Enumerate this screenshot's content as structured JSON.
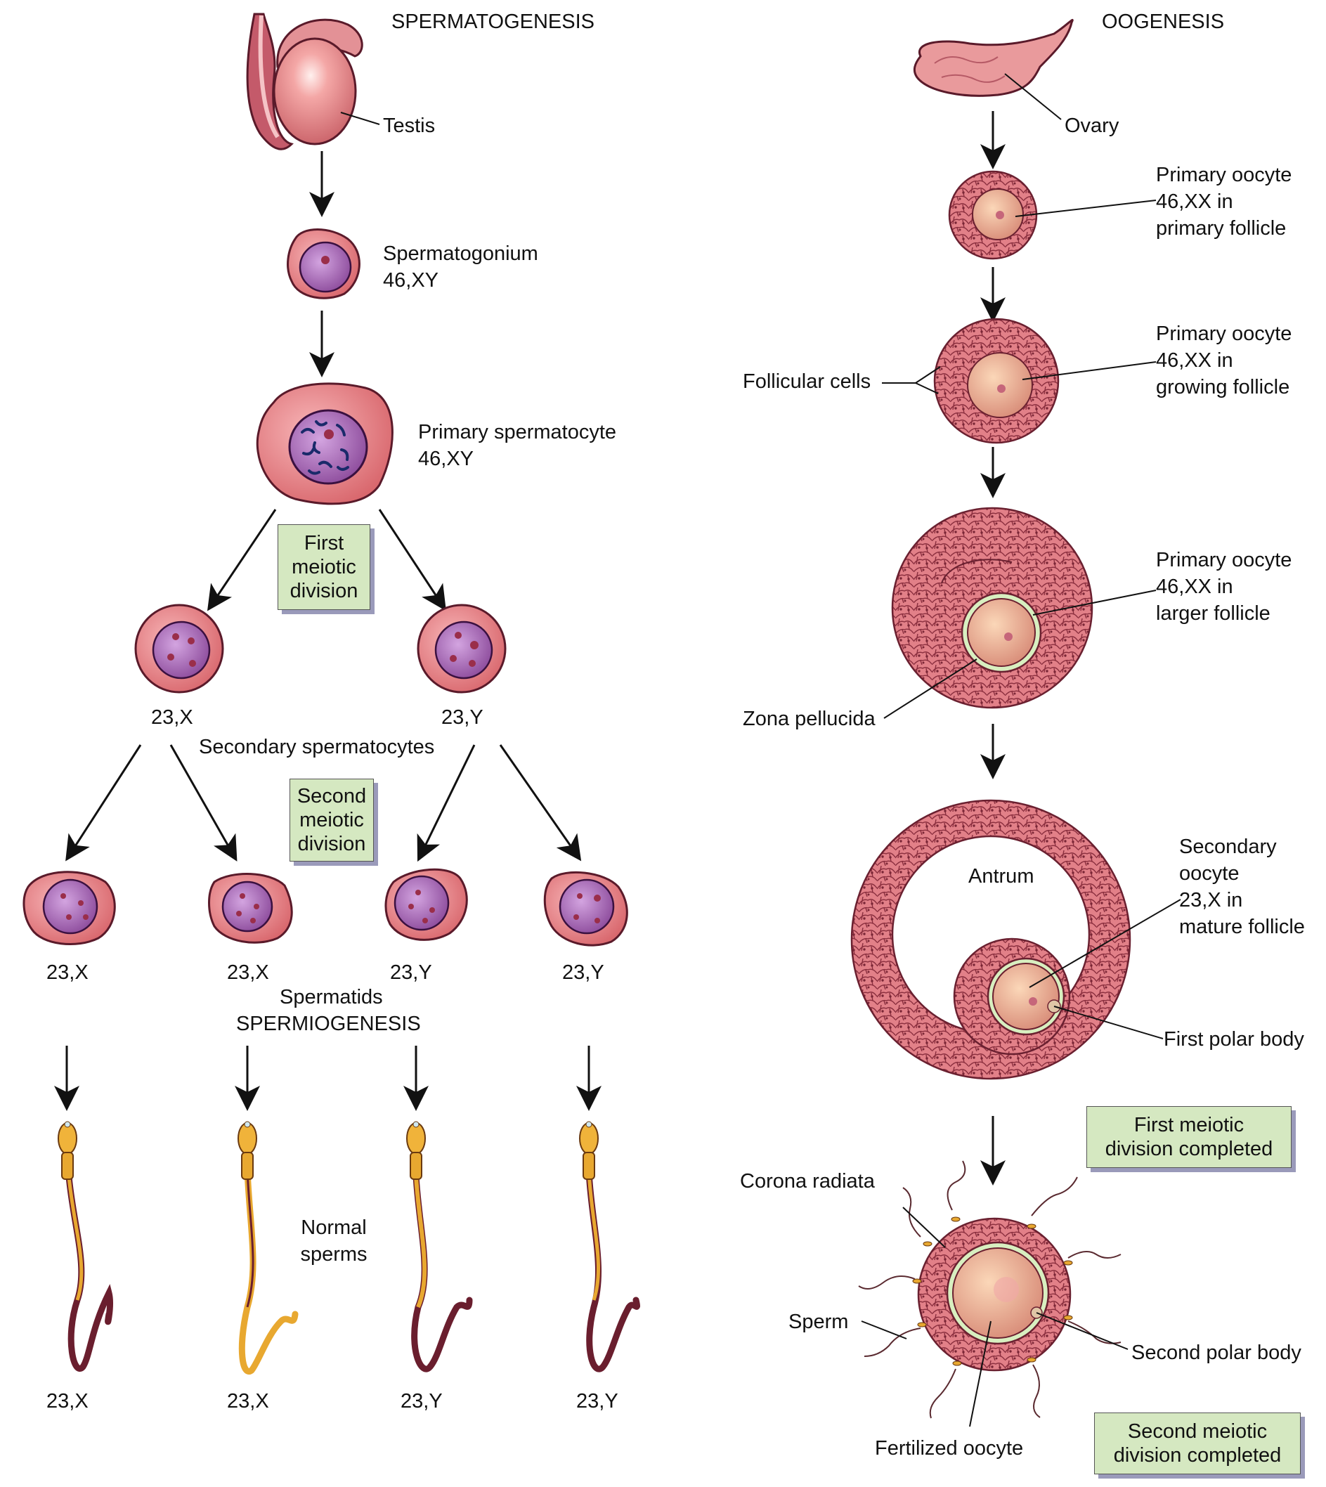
{
  "spermatogenesis": {
    "title": "SPERMATOGENESIS",
    "testis": "Testis",
    "spermatogonium": [
      "Spermatogonium",
      "46,XY"
    ],
    "primary_spermatocyte": [
      "Primary spermatocyte",
      "46,XY"
    ],
    "first_meiotic_box": [
      "First",
      "meiotic",
      "division"
    ],
    "secondary_left": "23,X",
    "secondary_right": "23,Y",
    "secondary_caption": "Secondary spermatocytes",
    "second_meiotic_box": [
      "Second",
      "meiotic",
      "division"
    ],
    "spermatid_labels": [
      "23,X",
      "23,X",
      "23,Y",
      "23,Y"
    ],
    "spermatids_caption": "Spermatids",
    "spermiogenesis": "SPERMIOGENESIS",
    "normal_sperms": [
      "Normal",
      "sperms"
    ],
    "sperm_labels": [
      "23,X",
      "23,X",
      "23,Y",
      "23,Y"
    ]
  },
  "oogenesis": {
    "title": "OOGENESIS",
    "ovary": "Ovary",
    "primary_follicle": [
      "Primary oocyte",
      "46,XX in",
      "primary follicle"
    ],
    "growing_follicle": [
      "Primary oocyte",
      "46,XX in",
      "growing follicle"
    ],
    "follicular_cells": "Follicular cells",
    "larger_follicle": [
      "Primary oocyte",
      "46,XX in",
      "larger follicle"
    ],
    "zona_pellucida": "Zona pellucida",
    "antrum": "Antrum",
    "mature_follicle": [
      "Secondary",
      "oocyte",
      "23,X in",
      "mature follicle"
    ],
    "first_polar_body": "First polar body",
    "first_completed_box": [
      "First meiotic",
      "division completed"
    ],
    "corona_radiata": "Corona radiata",
    "sperm": "Sperm",
    "second_polar_body": "Second polar body",
    "fertilized_oocyte": "Fertilized oocyte",
    "second_completed_box": [
      "Second meiotic",
      "division completed"
    ]
  },
  "colors": {
    "cell_fill": "#e88a8e",
    "nucleus_fill": "#9a5aa6",
    "follicle_cell": "#d56a78",
    "oocyte": "#f2b79a",
    "zona": "#d8efc0",
    "box_fill": "#d5e8c1",
    "sperm_head": "#f0b33a",
    "sperm_tail": "#8a3a4a"
  }
}
